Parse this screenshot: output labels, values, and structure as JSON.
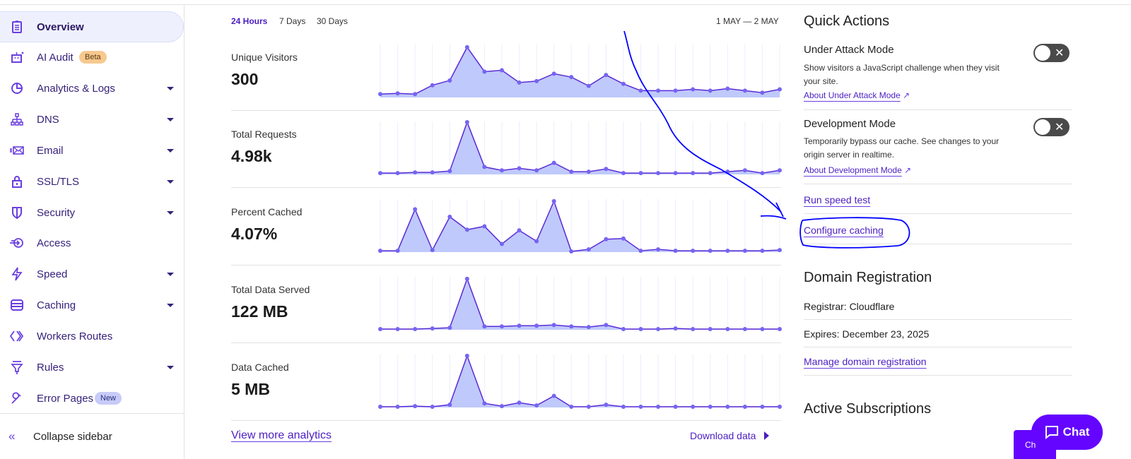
{
  "sidebar": {
    "items": [
      {
        "label": "Overview",
        "icon": "clipboard-icon",
        "active": true
      },
      {
        "label": "AI Audit",
        "icon": "robot-icon",
        "badge": "Beta"
      },
      {
        "label": "Analytics & Logs",
        "icon": "pie-chart-icon",
        "expandable": true
      },
      {
        "label": "DNS",
        "icon": "network-icon",
        "expandable": true
      },
      {
        "label": "Email",
        "icon": "email-icon",
        "expandable": true
      },
      {
        "label": "SSL/TLS",
        "icon": "lock-icon",
        "expandable": true
      },
      {
        "label": "Security",
        "icon": "shield-icon",
        "expandable": true
      },
      {
        "label": "Access",
        "icon": "access-icon"
      },
      {
        "label": "Speed",
        "icon": "lightning-icon",
        "expandable": true
      },
      {
        "label": "Caching",
        "icon": "server-icon",
        "expandable": true
      },
      {
        "label": "Workers Routes",
        "icon": "workers-icon"
      },
      {
        "label": "Rules",
        "icon": "funnel-icon",
        "expandable": true
      },
      {
        "label": "Error Pages",
        "icon": "wrench-icon",
        "badge": "New"
      }
    ],
    "collapse": "Collapse sidebar"
  },
  "main": {
    "tabs": [
      "24 Hours",
      "7 Days",
      "30 Days"
    ],
    "active_tab": "24 Hours",
    "range": "1 MAY — 2 MAY",
    "metrics": [
      {
        "label": "Unique Visitors",
        "value": "300",
        "points": [
          5,
          6,
          5,
          18,
          25,
          74,
          38,
          40,
          22,
          24,
          35,
          30,
          17,
          33,
          20,
          10,
          10,
          10,
          12,
          10,
          13,
          10,
          7,
          12
        ]
      },
      {
        "label": "Total Requests",
        "value": "4.98k",
        "points": [
          2,
          2,
          3,
          3,
          5,
          77,
          11,
          6,
          9,
          6,
          17,
          4,
          4,
          8,
          2,
          2,
          2,
          2,
          2,
          2,
          4,
          6,
          2,
          6
        ]
      },
      {
        "label": "Percent Cached",
        "value": "4.07%",
        "points": [
          2,
          2,
          63,
          3,
          52,
          33,
          38,
          12,
          32,
          16,
          75,
          1,
          4,
          19,
          20,
          2,
          4,
          2,
          2,
          2,
          2,
          2,
          2,
          3
        ]
      },
      {
        "label": "Total Data Served",
        "value": "122 MB",
        "points": [
          1,
          1,
          1,
          2,
          3,
          75,
          5,
          5,
          6,
          6,
          7,
          5,
          4,
          7,
          1,
          1,
          1,
          2,
          1,
          1,
          1,
          1,
          1,
          1
        ]
      },
      {
        "label": "Data Cached",
        "value": "5 MB",
        "points": [
          1,
          1,
          2,
          1,
          4,
          76,
          6,
          2,
          7,
          3,
          17,
          1,
          1,
          4,
          1,
          1,
          1,
          1,
          1,
          1,
          1,
          1,
          1,
          1
        ]
      }
    ],
    "view_more": "View more analytics",
    "download": "Download data"
  },
  "quick_actions": {
    "title": "Quick Actions",
    "under_attack": {
      "title": "Under Attack Mode",
      "desc": "Show visitors a JavaScript challenge when they visit your site.",
      "link": "About Under Attack Mode",
      "enabled": false
    },
    "dev_mode": {
      "title": "Development Mode",
      "desc": "Temporarily bypass our cache. See changes to your origin server in realtime.",
      "link": "About Development Mode",
      "enabled": false
    },
    "speed_test": "Run speed test",
    "configure_caching": "Configure caching"
  },
  "domain": {
    "title": "Domain Registration",
    "registrar": "Registrar: Cloudflare",
    "expires": "Expires: December 23, 2025",
    "manage": "Manage domain registration"
  },
  "subscriptions": {
    "title": "Active Subscriptions"
  },
  "chat": {
    "label": "Chat",
    "tab_label": "Ch"
  },
  "colors": {
    "accent": "#6a3fe0",
    "chart_fill": "#bfc9fb",
    "chart_line": "#5b2ad6",
    "chat": "#6405ff",
    "annotation": "#0000ff"
  }
}
